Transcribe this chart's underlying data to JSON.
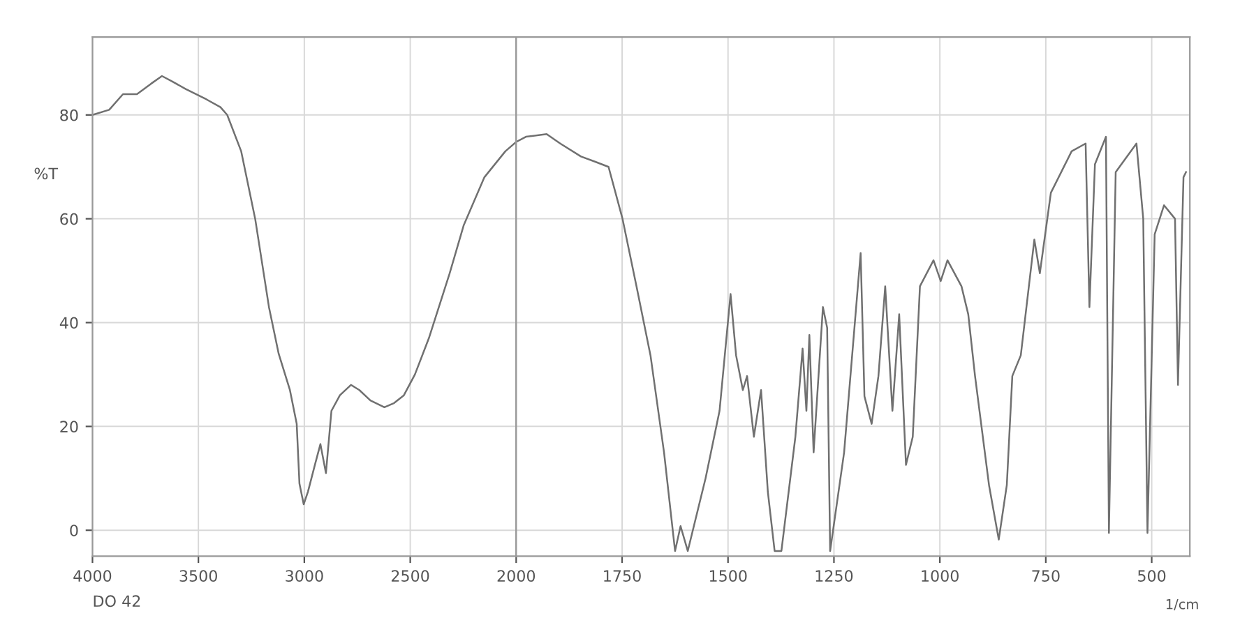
{
  "chart_data": [
    {
      "type": "line",
      "ylabel": "%T",
      "annotations": [
        "DO 42"
      ],
      "xlim": [
        4000,
        2000
      ],
      "ylim": [
        -5,
        95
      ],
      "xticks": [
        4000,
        3500,
        3000,
        2500,
        2000
      ],
      "yticks": [
        0,
        20,
        40,
        60,
        80
      ],
      "grid": true,
      "line_style": "solid",
      "marker": "none",
      "series": [
        {
          "color": "#707070",
          "x": [
            4000,
            3921,
            3856,
            3790,
            3724,
            3672,
            3626,
            3560,
            3462,
            3396,
            3364,
            3298,
            3232,
            3167,
            3121,
            3068,
            3036,
            3023,
            3003,
            2983,
            2950,
            2924,
            2898,
            2872,
            2832,
            2780,
            2740,
            2688,
            2622,
            2576,
            2530,
            2478,
            2412,
            2314,
            2248,
            2150,
            2051,
            2000
          ],
          "values": [
            80,
            81,
            84,
            84,
            86,
            87.5,
            86.5,
            85,
            83,
            81.5,
            80,
            73,
            60,
            43,
            34,
            27,
            20.5,
            9,
            5,
            7.4,
            12.6,
            16.6,
            11,
            23,
            26,
            28,
            27,
            25,
            23.7,
            24.5,
            26,
            30,
            37,
            49.5,
            58.7,
            68,
            73,
            74.8
          ]
        }
      ]
    },
    {
      "type": "line",
      "xlabel": "1/cm",
      "tick_labels": "x",
      "xlim": [
        2000,
        410
      ],
      "ylim": [
        -5,
        95
      ],
      "xticks": [
        1750,
        1500,
        1250,
        1000,
        750,
        500
      ],
      "yticks": [
        0,
        20,
        40,
        60,
        80
      ],
      "grid": true,
      "line_style": "solid",
      "marker": "none",
      "series": [
        {
          "color": "#707070",
          "x": [
            2000,
            1977,
            1928,
            1896,
            1847,
            1814,
            1782,
            1749,
            1716,
            1683,
            1651,
            1625,
            1612,
            1595,
            1553,
            1520,
            1494,
            1481,
            1465,
            1455,
            1439,
            1422,
            1406,
            1390,
            1374,
            1341,
            1324,
            1315,
            1308,
            1298,
            1276,
            1266,
            1259,
            1226,
            1187,
            1178,
            1161,
            1145,
            1129,
            1112,
            1096,
            1080,
            1064,
            1047,
            1015,
            998,
            982,
            949,
            933,
            917,
            884,
            861,
            842,
            829,
            809,
            777,
            764,
            738,
            689,
            656,
            647,
            634,
            608,
            601,
            585,
            536,
            520,
            510,
            493,
            471,
            445,
            438,
            425,
            419
          ],
          "values": [
            74.8,
            75.8,
            76.3,
            74.5,
            72,
            71,
            70,
            60,
            47,
            33.7,
            15,
            -4,
            0.8,
            -4,
            10,
            23,
            45.5,
            33.7,
            27,
            29.7,
            18,
            27,
            7.4,
            -4,
            -4,
            18,
            35,
            23,
            37.6,
            15,
            43,
            39,
            -4,
            15,
            53.4,
            25.8,
            20.5,
            29.7,
            47,
            23,
            41.6,
            12.6,
            18,
            47,
            52,
            48,
            52,
            47,
            41.6,
            29.7,
            8.7,
            -1.8,
            8.7,
            29.7,
            33.7,
            56,
            49.5,
            65,
            73,
            74.5,
            43,
            70.5,
            75.8,
            -0.5,
            69,
            74.5,
            60,
            -0.5,
            57,
            62.6,
            60,
            28,
            68,
            69
          ]
        }
      ]
    }
  ]
}
